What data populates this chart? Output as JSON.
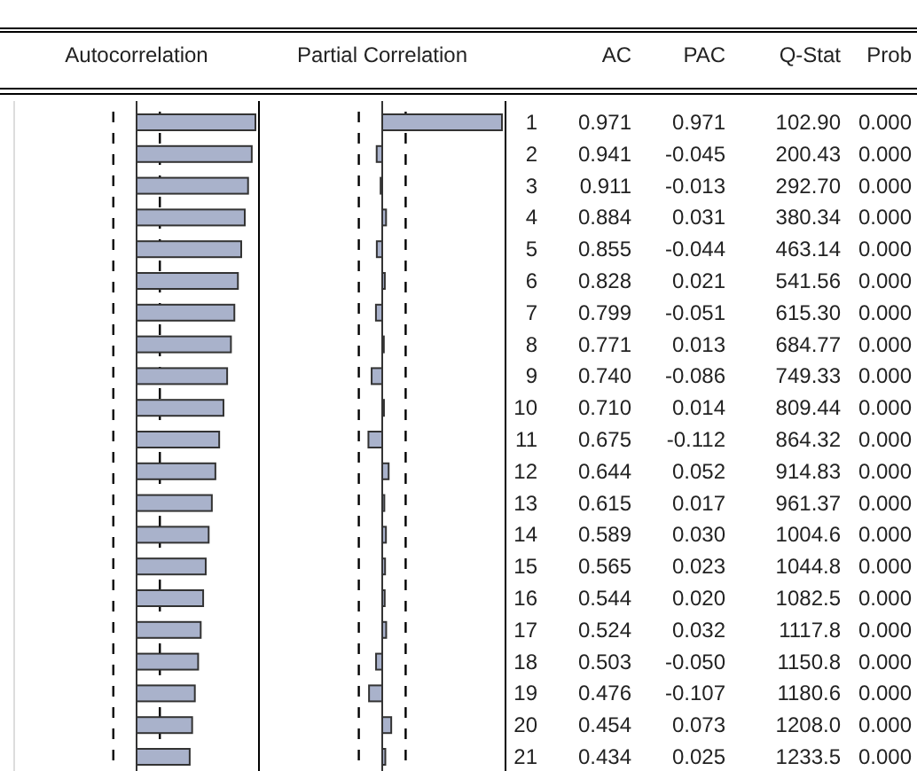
{
  "chart_data": [
    {
      "type": "bar",
      "orientation": "horizontal",
      "title": "Autocorrelation",
      "categories": [
        null,
        null,
        null,
        null,
        null,
        null,
        null,
        null,
        null,
        null,
        null,
        null,
        null,
        null,
        null,
        null,
        null,
        null,
        null,
        null,
        null
      ],
      "series": [
        {
          "name": "AC",
          "color": "#a9b2cb",
          "values": [
            0.971,
            0.941,
            0.911,
            0.884,
            0.855,
            0.828,
            0.799,
            0.771,
            0.74,
            0.71,
            0.675,
            0.644,
            0.615,
            0.589,
            0.565,
            0.544,
            0.524,
            0.503,
            0.476,
            0.454,
            0.434
          ],
          "value_labels": [
            "0.971",
            "0.941",
            "0.911",
            "0.884",
            "0.855",
            "0.828",
            "0.799",
            "0.771",
            "0.740",
            "0.710",
            "0.675",
            "0.644",
            "0.615",
            "0.589",
            "0.565",
            "0.544",
            "0.524",
            "0.503",
            "0.476",
            "0.454",
            "0.434"
          ]
        }
      ],
      "xlim": [
        -1,
        1
      ],
      "ref_lines": [
        {
          "axis": "x",
          "value": -0.19,
          "line_style": "dashed",
          "color": "#000000"
        },
        {
          "axis": "x",
          "value": 0.19,
          "line_style": "dashed",
          "color": "#000000"
        }
      ]
    },
    {
      "type": "bar",
      "orientation": "horizontal",
      "title": "Partial Correlation",
      "categories": [
        "1",
        "2",
        "3",
        "4",
        "5",
        "6",
        "7",
        "8",
        "9",
        "10",
        "11",
        "12",
        "13",
        "14",
        "15",
        "16",
        "17",
        "18",
        "19",
        "20",
        "21"
      ],
      "series": [
        {
          "name": "PAC",
          "color": "#a9b2cb",
          "values": [
            0.971,
            -0.045,
            -0.013,
            0.031,
            -0.044,
            0.021,
            -0.051,
            0.013,
            -0.086,
            0.014,
            -0.112,
            0.052,
            0.017,
            0.03,
            0.023,
            0.02,
            0.032,
            -0.05,
            -0.107,
            0.073,
            0.025
          ],
          "value_labels": [
            "0.971",
            "-0.045",
            "-0.013",
            "0.031",
            "-0.044",
            "0.021",
            "-0.051",
            "0.013",
            "-0.086",
            "0.014",
            "-0.112",
            "0.052",
            "0.017",
            "0.030",
            "0.023",
            "0.020",
            "0.032",
            "-0.050",
            "-0.107",
            "0.073",
            "0.025"
          ]
        }
      ],
      "xlim": [
        -1,
        1
      ],
      "tick_labels": "y",
      "ref_lines": [
        {
          "axis": "x",
          "value": -0.19,
          "line_style": "dashed",
          "color": "#000000"
        },
        {
          "axis": "x",
          "value": 0.19,
          "line_style": "dashed",
          "color": "#000000"
        }
      ]
    },
    {
      "type": "other",
      "annotations": [
        "Q-Stat",
        "Prob",
        "102.90",
        "0.000",
        "200.43",
        "0.000",
        "292.70",
        "0.000",
        "380.34",
        "0.000",
        "463.14",
        "0.000",
        "541.56",
        "0.000",
        "615.30",
        "0.000",
        "684.77",
        "0.000",
        "749.33",
        "0.000",
        "809.44",
        "0.000",
        "864.32",
        "0.000",
        "914.83",
        "0.000",
        "961.37",
        "0.000",
        "1004.6",
        "0.000",
        "1044.8",
        "0.000",
        "1082.5",
        "0.000",
        "1117.8",
        "0.000",
        "1150.8",
        "0.000",
        "1180.6",
        "0.000",
        "1208.0",
        "0.000",
        "1233.5",
        "0.000"
      ]
    }
  ]
}
